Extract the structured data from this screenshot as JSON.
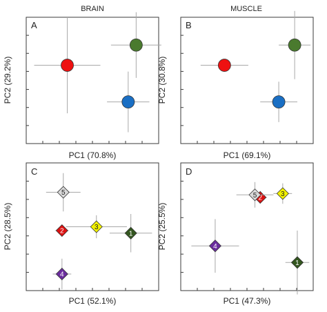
{
  "column_titles": [
    "BRAIN",
    "MUSCLE"
  ],
  "chart_data": [
    {
      "type": "scatter",
      "panel_label": "A",
      "xlabel": "PC1 (70.8%)",
      "ylabel": "PC2 (29.2%)",
      "xlim": [
        0,
        1
      ],
      "ylim": [
        0,
        1
      ],
      "grid": false,
      "points": [
        {
          "x": 0.31,
          "y": 0.62,
          "xerr": 0.25,
          "yerr": 0.38,
          "color": "#ee1111",
          "shape": "circle",
          "label": ""
        },
        {
          "x": 0.83,
          "y": 0.78,
          "xerr": 0.19,
          "yerr": 0.26,
          "color": "#4a7a2e",
          "shape": "circle",
          "label": ""
        },
        {
          "x": 0.77,
          "y": 0.33,
          "xerr": 0.16,
          "yerr": 0.24,
          "color": "#1a6fc4",
          "shape": "circle",
          "label": ""
        }
      ]
    },
    {
      "type": "scatter",
      "panel_label": "B",
      "xlabel": "PC1 (69.1%)",
      "ylabel": "PC2 (30.8%)",
      "xlim": [
        0,
        1
      ],
      "ylim": [
        0,
        1
      ],
      "grid": false,
      "points": [
        {
          "x": 0.33,
          "y": 0.62,
          "xerr": 0.18,
          "yerr": 0.0,
          "color": "#ee1111",
          "shape": "circle",
          "label": ""
        },
        {
          "x": 0.86,
          "y": 0.78,
          "xerr": 0.12,
          "yerr": 0.27,
          "color": "#4a7a2e",
          "shape": "circle",
          "label": ""
        },
        {
          "x": 0.74,
          "y": 0.33,
          "xerr": 0.14,
          "yerr": 0.16,
          "color": "#1a6fc4",
          "shape": "circle",
          "label": ""
        }
      ]
    },
    {
      "type": "scatter",
      "panel_label": "C",
      "xlabel": "PC1 (52.1%)",
      "ylabel": "PC2 (28.5%)",
      "xlim": [
        0,
        1
      ],
      "ylim": [
        0,
        1
      ],
      "grid": false,
      "points": [
        {
          "x": 0.79,
          "y": 0.45,
          "xerr": 0.16,
          "yerr": 0.15,
          "color": "#33561f",
          "shape": "diamond",
          "label": "1"
        },
        {
          "x": 0.27,
          "y": 0.47,
          "xerr": 0.05,
          "yerr": 0.0,
          "color": "#dd1111",
          "shape": "diamond",
          "label": "2"
        },
        {
          "x": 0.53,
          "y": 0.5,
          "xerr": 0.23,
          "yerr": 0.09,
          "color": "#f1f000",
          "shape": "diamond",
          "label": "3"
        },
        {
          "x": 0.27,
          "y": 0.13,
          "xerr": 0.07,
          "yerr": 0.12,
          "color": "#6b2d9e",
          "shape": "diamond",
          "label": "4"
        },
        {
          "x": 0.28,
          "y": 0.77,
          "xerr": 0.13,
          "yerr": 0.15,
          "color": "#d9d9d9",
          "shape": "diamond",
          "label": "5"
        }
      ]
    },
    {
      "type": "scatter",
      "panel_label": "D",
      "xlabel": "PC1 (47.3%)",
      "ylabel": "PC2 (25.5%)",
      "xlim": [
        0,
        1
      ],
      "ylim": [
        0,
        1
      ],
      "grid": false,
      "points": [
        {
          "x": 0.88,
          "y": 0.22,
          "xerr": 0.09,
          "yerr": 0.25,
          "color": "#33561f",
          "shape": "diamond",
          "label": "1"
        },
        {
          "x": 0.6,
          "y": 0.73,
          "xerr": 0.05,
          "yerr": 0.05,
          "color": "#dd1111",
          "shape": "diamond",
          "label": "2"
        },
        {
          "x": 0.77,
          "y": 0.76,
          "xerr": 0.07,
          "yerr": 0.08,
          "color": "#f1f000",
          "shape": "diamond",
          "label": "3"
        },
        {
          "x": 0.26,
          "y": 0.35,
          "xerr": 0.18,
          "yerr": 0.21,
          "color": "#6b2d9e",
          "shape": "diamond",
          "label": "4"
        },
        {
          "x": 0.56,
          "y": 0.75,
          "xerr": 0.14,
          "yerr": 0.1,
          "color": "#d9d9d9",
          "shape": "diamond",
          "label": "5"
        }
      ]
    }
  ]
}
